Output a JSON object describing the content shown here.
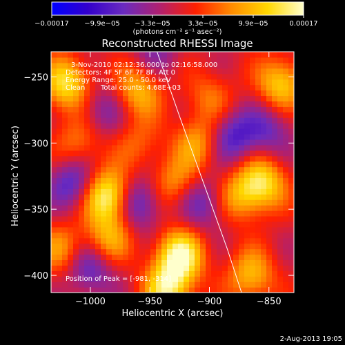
{
  "chart_data": {
    "type": "heatmap",
    "title": "Reconstructed RHESSI Image",
    "xlabel": "Heliocentric X (arcsec)",
    "ylabel": "Heliocentric Y (arcsec)",
    "xlim": [
      -1033,
      -829
    ],
    "ylim": [
      -413,
      -231
    ],
    "xticks": [
      -1000,
      -950,
      -900,
      -850
    ],
    "yticks": [
      -250,
      -300,
      -350,
      -400
    ],
    "xtick_labels": [
      "−1000",
      "−950",
      "−900",
      "−850"
    ],
    "ytick_labels": [
      "−250",
      "−300",
      "−350",
      "−400"
    ],
    "colorbar": {
      "min": -0.00017,
      "max": 0.00017,
      "tick_labels": [
        "−0.00017",
        "−9.9e−05",
        "−3.3e−05",
        "3.3e−05",
        "9.9e−05",
        "0.00017"
      ],
      "units_label": "(photons cm⁻² s⁻¹ asec⁻²)",
      "colors": [
        "#0000ff",
        "#3300cc",
        "#6a2bbf",
        "#b0206f",
        "#ff2000",
        "#ff8c00",
        "#ffd700",
        "#ffffcc"
      ]
    },
    "annotations": {
      "time_range": "3-Nov-2010 02:12:36.000 to 02:16:58.000",
      "detectors": "Detectors: 4F 5F 6F 7F 8F, Att 0",
      "energy_range": "Energy Range: 25.0 - 50.0 keV",
      "method": "Clean",
      "total_counts": "Total counts: 4.68E+03",
      "peak": "Position of Peak = [-981, -314]"
    },
    "peak_position": [
      -981,
      -314
    ],
    "limb": [
      [
        -944,
        -231
      ],
      [
        -925,
        -280
      ],
      [
        -905,
        -330
      ],
      [
        -885,
        -380
      ],
      [
        -873,
        -413
      ]
    ],
    "sources": [
      {
        "x": -1020,
        "y": -255,
        "v": 0.8
      },
      {
        "x": -960,
        "y": -260,
        "v": 0.6
      },
      {
        "x": -1010,
        "y": -300,
        "v": 0.4
      },
      {
        "x": -985,
        "y": -340,
        "v": 1.0
      },
      {
        "x": -985,
        "y": -372,
        "v": 0.55
      },
      {
        "x": -930,
        "y": -330,
        "v": 0.45
      },
      {
        "x": -925,
        "y": -385,
        "v": 0.95
      },
      {
        "x": -935,
        "y": -410,
        "v": 0.8
      },
      {
        "x": -910,
        "y": -300,
        "v": 0.5
      },
      {
        "x": -900,
        "y": -265,
        "v": 0.35
      },
      {
        "x": -875,
        "y": -340,
        "v": 0.5
      },
      {
        "x": -855,
        "y": -330,
        "v": 0.75
      },
      {
        "x": -840,
        "y": -255,
        "v": 0.7
      },
      {
        "x": -865,
        "y": -400,
        "v": 0.6
      },
      {
        "x": -1025,
        "y": -380,
        "v": 0.45
      },
      {
        "x": -960,
        "y": -300,
        "v": 0.3
      },
      {
        "x": -1015,
        "y": -330,
        "v": -0.55
      },
      {
        "x": -960,
        "y": -345,
        "v": -0.6
      },
      {
        "x": -1000,
        "y": -395,
        "v": -0.5
      },
      {
        "x": -905,
        "y": -345,
        "v": -0.45
      },
      {
        "x": -880,
        "y": -295,
        "v": -0.55
      },
      {
        "x": -990,
        "y": -275,
        "v": -0.35
      },
      {
        "x": -850,
        "y": -290,
        "v": -0.4
      },
      {
        "x": -945,
        "y": -230,
        "v": -0.3
      }
    ]
  },
  "footer": {
    "date": "2-Aug-2013 19:05"
  }
}
